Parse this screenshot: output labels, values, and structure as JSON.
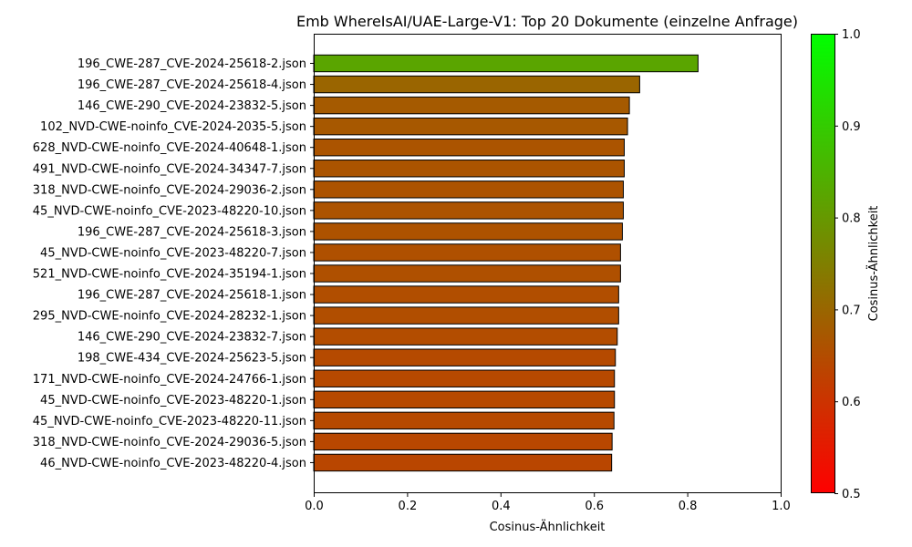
{
  "chart_data": {
    "type": "bar",
    "orientation": "horizontal",
    "title": "Emb WhereIsAI/UAE-Large-V1: Top 20 Dokumente (einzelne Anfrage)",
    "xlabel": "Cosinus-Ähnlichkeit",
    "ylabel": "",
    "xlim": [
      0.0,
      1.0
    ],
    "xticks": [
      "0.0",
      "0.2",
      "0.4",
      "0.6",
      "0.8",
      "1.0"
    ],
    "categories": [
      "196_CWE-287_CVE-2024-25618-2.json",
      "196_CWE-287_CVE-2024-25618-4.json",
      "146_CWE-290_CVE-2024-23832-5.json",
      "102_NVD-CWE-noinfo_CVE-2024-2035-5.json",
      "628_NVD-CWE-noinfo_CVE-2024-40648-1.json",
      "491_NVD-CWE-noinfo_CVE-2024-34347-7.json",
      "318_NVD-CWE-noinfo_CVE-2024-29036-2.json",
      "45_NVD-CWE-noinfo_CVE-2023-48220-10.json",
      "196_CWE-287_CVE-2024-25618-3.json",
      "45_NVD-CWE-noinfo_CVE-2023-48220-7.json",
      "521_NVD-CWE-noinfo_CVE-2024-35194-1.json",
      "196_CWE-287_CVE-2024-25618-1.json",
      "295_NVD-CWE-noinfo_CVE-2024-28232-1.json",
      "146_CWE-290_CVE-2024-23832-7.json",
      "198_CWE-434_CVE-2024-25623-5.json",
      "171_NVD-CWE-noinfo_CVE-2024-24766-1.json",
      "45_NVD-CWE-noinfo_CVE-2023-48220-1.json",
      "45_NVD-CWE-noinfo_CVE-2023-48220-11.json",
      "318_NVD-CWE-noinfo_CVE-2024-29036-5.json",
      "46_NVD-CWE-noinfo_CVE-2023-48220-4.json"
    ],
    "values": [
      0.823,
      0.698,
      0.676,
      0.672,
      0.665,
      0.665,
      0.663,
      0.663,
      0.661,
      0.657,
      0.657,
      0.653,
      0.653,
      0.65,
      0.646,
      0.644,
      0.644,
      0.643,
      0.639,
      0.638
    ],
    "colorbar": {
      "label": "Cosinus-Ähnlichkeit",
      "range": [
        0.5,
        1.0
      ],
      "ticks": [
        "0.5",
        "0.6",
        "0.7",
        "0.8",
        "0.9",
        "1.0"
      ],
      "color_low": "#ff0000",
      "color_high": "#00ff00"
    },
    "bar_edge_color": "#000000",
    "grid": false,
    "legend": "none"
  }
}
